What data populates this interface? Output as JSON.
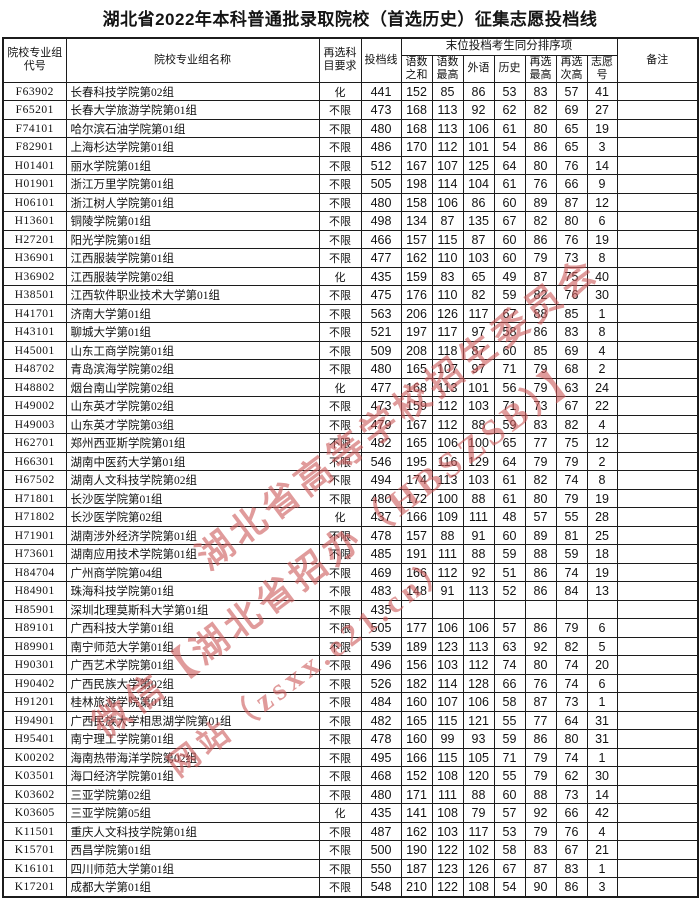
{
  "title": "湖北省2022年本科普通批录取院校（首选历史）征集志愿投档线",
  "watermark": {
    "color": "#cc5858",
    "lines": [
      "湖北省高等学校招生委员会",
      "微信【湖北省招办（HBSZSB）】",
      "网站（zsxx.e21.cn）"
    ]
  },
  "table": {
    "headers": {
      "code": "院校专业组代号",
      "name": "院校专业组名称",
      "subject": "再选科目要求",
      "line": "投档线",
      "group": "末位投档考生同分排序项",
      "sub": [
        "语数之和",
        "语数最高",
        "外语",
        "历史",
        "再选最高",
        "再选次高",
        "志愿号"
      ],
      "remark": "备注"
    },
    "rows": [
      [
        "F63902",
        "长春科技学院第02组",
        "化",
        "441",
        "152",
        "85",
        "86",
        "53",
        "83",
        "57",
        "41",
        ""
      ],
      [
        "F65201",
        "长春大学旅游学院第01组",
        "不限",
        "473",
        "168",
        "113",
        "92",
        "62",
        "82",
        "69",
        "27",
        ""
      ],
      [
        "F74101",
        "哈尔滨石油学院第01组",
        "不限",
        "480",
        "168",
        "113",
        "106",
        "61",
        "80",
        "65",
        "19",
        ""
      ],
      [
        "F82901",
        "上海杉达学院第01组",
        "不限",
        "486",
        "170",
        "112",
        "101",
        "54",
        "86",
        "65",
        "3",
        ""
      ],
      [
        "H01401",
        "丽水学院第01组",
        "不限",
        "512",
        "167",
        "107",
        "125",
        "64",
        "80",
        "76",
        "14",
        ""
      ],
      [
        "H01901",
        "浙江万里学院第01组",
        "不限",
        "505",
        "198",
        "114",
        "104",
        "61",
        "76",
        "66",
        "9",
        ""
      ],
      [
        "H06101",
        "浙江树人学院第01组",
        "不限",
        "480",
        "158",
        "106",
        "86",
        "60",
        "89",
        "87",
        "12",
        ""
      ],
      [
        "H13601",
        "铜陵学院第01组",
        "不限",
        "498",
        "134",
        "87",
        "135",
        "67",
        "82",
        "80",
        "6",
        ""
      ],
      [
        "H27201",
        "阳光学院第01组",
        "不限",
        "466",
        "157",
        "115",
        "87",
        "60",
        "86",
        "76",
        "19",
        ""
      ],
      [
        "H36901",
        "江西服装学院第01组",
        "不限",
        "477",
        "162",
        "110",
        "103",
        "60",
        "79",
        "73",
        "8",
        ""
      ],
      [
        "H36902",
        "江西服装学院第02组",
        "化",
        "435",
        "159",
        "83",
        "65",
        "49",
        "87",
        "75",
        "40",
        ""
      ],
      [
        "H38501",
        "江西软件职业技术大学第01组",
        "不限",
        "475",
        "176",
        "110",
        "82",
        "59",
        "82",
        "76",
        "30",
        ""
      ],
      [
        "H41701",
        "济南大学第01组",
        "不限",
        "563",
        "206",
        "126",
        "117",
        "67",
        "88",
        "85",
        "1",
        ""
      ],
      [
        "H43101",
        "聊城大学第01组",
        "不限",
        "521",
        "197",
        "117",
        "97",
        "58",
        "86",
        "83",
        "8",
        ""
      ],
      [
        "H45001",
        "山东工商学院第01组",
        "不限",
        "509",
        "208",
        "118",
        "87",
        "60",
        "85",
        "69",
        "4",
        ""
      ],
      [
        "H48702",
        "青岛滨海学院第02组",
        "不限",
        "480",
        "165",
        "107",
        "97",
        "71",
        "79",
        "68",
        "2",
        ""
      ],
      [
        "H48802",
        "烟台南山学院第02组",
        "化",
        "477",
        "168",
        "113",
        "101",
        "56",
        "79",
        "63",
        "24",
        ""
      ],
      [
        "H49002",
        "山东英才学院第02组",
        "不限",
        "473",
        "159",
        "112",
        "103",
        "71",
        "73",
        "67",
        "22",
        ""
      ],
      [
        "H49003",
        "山东英才学院第03组",
        "不限",
        "479",
        "167",
        "112",
        "88",
        "59",
        "83",
        "82",
        "4",
        ""
      ],
      [
        "H62701",
        "郑州西亚斯学院第01组",
        "不限",
        "482",
        "165",
        "106",
        "100",
        "65",
        "77",
        "75",
        "12",
        ""
      ],
      [
        "H66301",
        "湖南中医药大学第01组",
        "不限",
        "546",
        "195",
        "116",
        "129",
        "64",
        "79",
        "79",
        "2",
        ""
      ],
      [
        "H67502",
        "湖南人文科技学院第02组",
        "不限",
        "494",
        "174",
        "113",
        "103",
        "61",
        "82",
        "74",
        "8",
        ""
      ],
      [
        "H71801",
        "长沙医学院第01组",
        "不限",
        "480",
        "172",
        "100",
        "88",
        "61",
        "80",
        "79",
        "19",
        ""
      ],
      [
        "H71802",
        "长沙医学院第02组",
        "化",
        "437",
        "166",
        "109",
        "111",
        "48",
        "57",
        "55",
        "28",
        ""
      ],
      [
        "H71901",
        "湖南涉外经济学院第01组",
        "不限",
        "478",
        "157",
        "88",
        "91",
        "60",
        "89",
        "81",
        "25",
        ""
      ],
      [
        "H73601",
        "湖南应用技术学院第01组",
        "不限",
        "485",
        "191",
        "111",
        "88",
        "59",
        "88",
        "59",
        "18",
        ""
      ],
      [
        "H84704",
        "广州商学院第04组",
        "不限",
        "469",
        "166",
        "112",
        "92",
        "51",
        "86",
        "74",
        "19",
        ""
      ],
      [
        "H84901",
        "珠海科技学院第01组",
        "不限",
        "483",
        "148",
        "91",
        "113",
        "52",
        "86",
        "84",
        "13",
        ""
      ],
      [
        "H85901",
        "深圳北理莫斯科大学第01组",
        "不限",
        "435",
        "",
        "",
        "",
        "",
        "",
        "",
        "",
        ""
      ],
      [
        "H89101",
        "广西科技大学第01组",
        "不限",
        "505",
        "177",
        "106",
        "106",
        "57",
        "86",
        "79",
        "6",
        ""
      ],
      [
        "H89901",
        "南宁师范大学第01组",
        "不限",
        "539",
        "189",
        "123",
        "113",
        "63",
        "92",
        "82",
        "5",
        ""
      ],
      [
        "H90301",
        "广西艺术学院第01组",
        "不限",
        "496",
        "156",
        "103",
        "112",
        "74",
        "80",
        "74",
        "20",
        ""
      ],
      [
        "H90402",
        "广西民族大学第02组",
        "不限",
        "526",
        "182",
        "114",
        "128",
        "66",
        "76",
        "74",
        "6",
        ""
      ],
      [
        "H91201",
        "桂林旅游学院第01组",
        "不限",
        "484",
        "160",
        "107",
        "106",
        "58",
        "87",
        "73",
        "1",
        ""
      ],
      [
        "H94901",
        "广西民族大学相思湖学院第01组",
        "不限",
        "482",
        "165",
        "115",
        "121",
        "55",
        "77",
        "64",
        "31",
        ""
      ],
      [
        "H95401",
        "南宁理工学院第01组",
        "不限",
        "478",
        "160",
        "99",
        "93",
        "59",
        "86",
        "80",
        "31",
        ""
      ],
      [
        "K00202",
        "海南热带海洋学院第02组",
        "不限",
        "495",
        "166",
        "115",
        "105",
        "71",
        "79",
        "74",
        "1",
        ""
      ],
      [
        "K03501",
        "海口经济学院第01组",
        "不限",
        "468",
        "152",
        "108",
        "120",
        "55",
        "79",
        "62",
        "30",
        ""
      ],
      [
        "K03602",
        "三亚学院第02组",
        "不限",
        "480",
        "171",
        "111",
        "88",
        "60",
        "88",
        "73",
        "14",
        ""
      ],
      [
        "K03605",
        "三亚学院第05组",
        "化",
        "435",
        "141",
        "108",
        "79",
        "57",
        "92",
        "66",
        "42",
        ""
      ],
      [
        "K11501",
        "重庆人文科技学院第01组",
        "不限",
        "487",
        "162",
        "103",
        "117",
        "53",
        "79",
        "76",
        "4",
        ""
      ],
      [
        "K15701",
        "西昌学院第01组",
        "不限",
        "500",
        "190",
        "122",
        "102",
        "58",
        "83",
        "67",
        "21",
        ""
      ],
      [
        "K16101",
        "四川师范大学第01组",
        "不限",
        "550",
        "187",
        "123",
        "126",
        "67",
        "87",
        "83",
        "1",
        ""
      ],
      [
        "K17201",
        "成都大学第01组",
        "不限",
        "548",
        "210",
        "122",
        "108",
        "54",
        "90",
        "86",
        "3",
        ""
      ]
    ]
  }
}
